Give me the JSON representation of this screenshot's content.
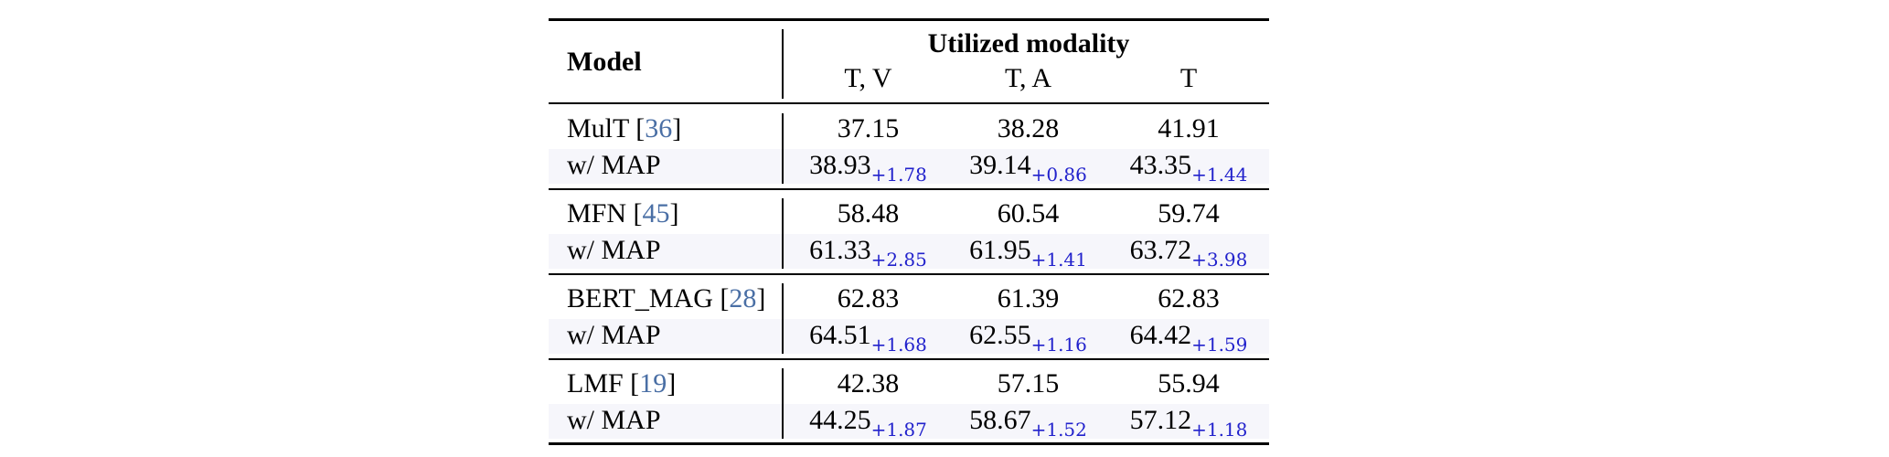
{
  "header": {
    "model": "Model",
    "utilized_modality": "Utilized modality",
    "columns": [
      "T, V",
      "T, A",
      "T"
    ]
  },
  "groups": [
    {
      "name": "MulT [",
      "cite": "36",
      "close": "]",
      "values": [
        "37.15",
        "38.28",
        "41.91"
      ],
      "map_label": "w/ MAP",
      "map_values": [
        "38.93",
        "39.14",
        "43.35"
      ],
      "map_deltas": [
        "+1.78",
        "+0.86",
        "+1.44"
      ]
    },
    {
      "name": "MFN [",
      "cite": "45",
      "close": "]",
      "values": [
        "58.48",
        "60.54",
        "59.74"
      ],
      "map_label": "w/ MAP",
      "map_values": [
        "61.33",
        "61.95",
        "63.72"
      ],
      "map_deltas": [
        "+2.85",
        "+1.41",
        "+3.98"
      ]
    },
    {
      "name": "BERT_MAG [",
      "cite": "28",
      "close": "]",
      "values": [
        "62.83",
        "61.39",
        "62.83"
      ],
      "map_label": "w/ MAP",
      "map_values": [
        "64.51",
        "62.55",
        "64.42"
      ],
      "map_deltas": [
        "+1.68",
        "+1.16",
        "+1.59"
      ]
    },
    {
      "name": "LMF [",
      "cite": "19",
      "close": "]",
      "values": [
        "42.38",
        "57.15",
        "55.94"
      ],
      "map_label": "w/ MAP",
      "map_values": [
        "44.25",
        "58.67",
        "57.12"
      ],
      "map_deltas": [
        "+1.87",
        "+1.52",
        "+1.18"
      ]
    }
  ],
  "colors": {
    "delta": "#2222cc",
    "citation": "#4a6fa5",
    "shade": "#f6f6fb"
  }
}
